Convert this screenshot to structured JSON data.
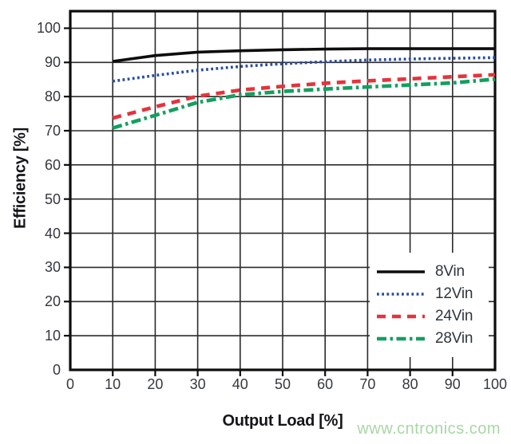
{
  "watermark": {
    "text": "www.cntronics.com",
    "color": "#a9d7a5"
  },
  "frame_color": "#0d0d0d",
  "grid_color": "#2b2b2b",
  "chart_data": {
    "type": "line",
    "title": "",
    "xlabel": "Output Load [%]",
    "ylabel": "Efficiency [%]",
    "xlim": [
      0,
      100
    ],
    "ylim": [
      0,
      105
    ],
    "grid": true,
    "legend_position": "bottom-right",
    "x_ticks": [
      0,
      10,
      20,
      30,
      40,
      50,
      60,
      70,
      80,
      90,
      100
    ],
    "y_ticks": [
      0,
      10,
      20,
      30,
      40,
      50,
      60,
      70,
      80,
      90,
      100
    ],
    "x": [
      10,
      20,
      30,
      40,
      50,
      60,
      70,
      80,
      90,
      100
    ],
    "series": [
      {
        "name": "8Vin",
        "color": "#0d0d0d",
        "dash": "solid",
        "values": [
          90.3,
          92.0,
          93.0,
          93.4,
          93.7,
          93.9,
          94.0,
          94.0,
          94.0,
          94.0
        ]
      },
      {
        "name": "12Vin",
        "color": "#2a4da0",
        "dash": "dotted",
        "values": [
          84.5,
          86.2,
          87.7,
          88.8,
          89.6,
          90.2,
          90.7,
          91.0,
          91.2,
          91.4
        ]
      },
      {
        "name": "24Vin",
        "color": "#e5333c",
        "dash": "dashed",
        "values": [
          73.7,
          77.0,
          80.1,
          81.9,
          83.0,
          83.9,
          84.6,
          85.2,
          85.8,
          86.4
        ]
      },
      {
        "name": "28Vin",
        "color": "#12a05f",
        "dash": "dashdot",
        "values": [
          70.8,
          74.5,
          78.3,
          80.5,
          81.5,
          82.2,
          82.8,
          83.4,
          84.0,
          85.1
        ]
      }
    ]
  }
}
